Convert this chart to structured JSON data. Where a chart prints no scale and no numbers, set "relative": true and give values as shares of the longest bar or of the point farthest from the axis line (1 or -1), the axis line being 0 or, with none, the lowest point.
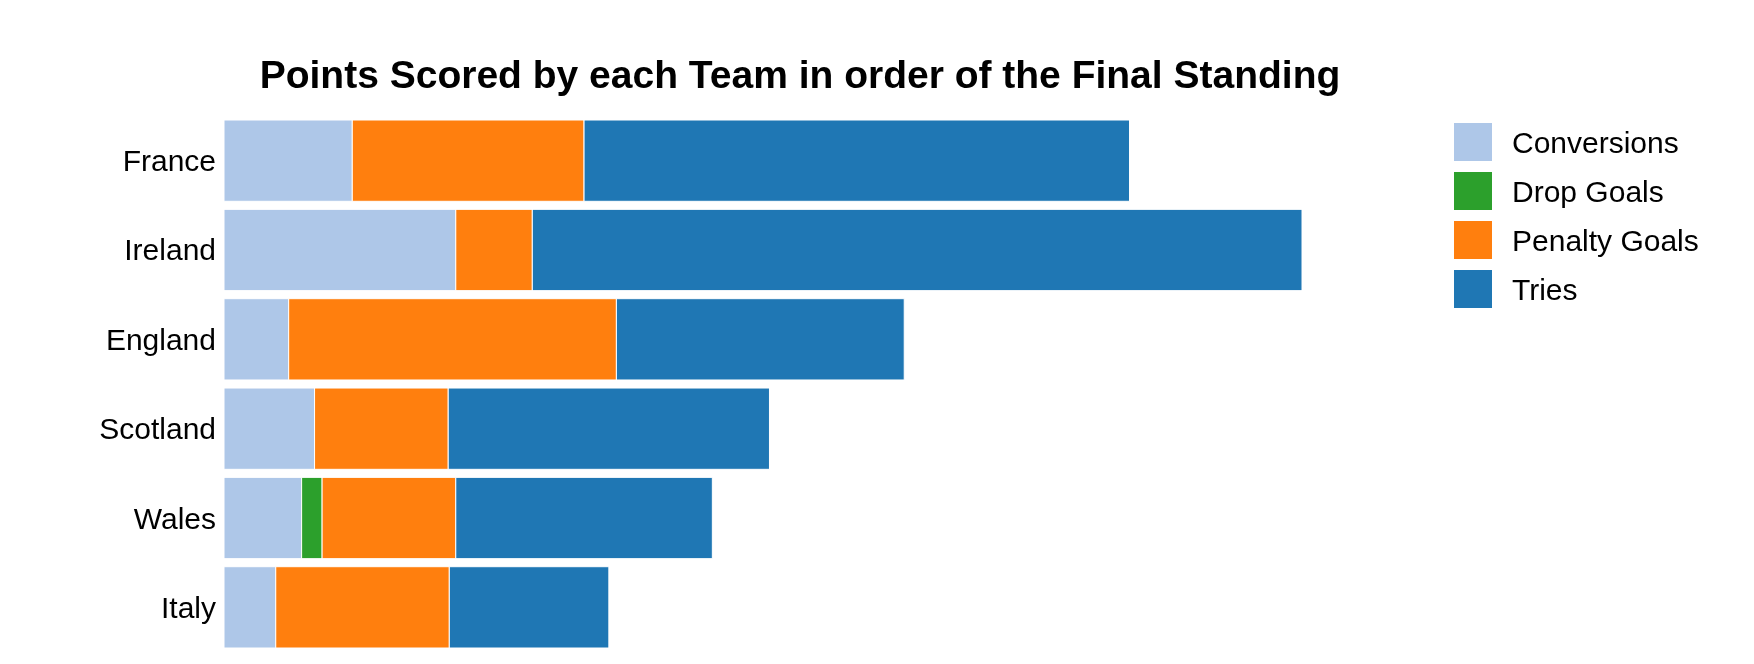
{
  "chart_data": {
    "type": "bar",
    "orientation": "horizontal",
    "stacked": true,
    "relative": true,
    "title": "Points Scored by each Team in order of the Final Standing",
    "categories": [
      "France",
      "Ireland",
      "England",
      "Scotland",
      "Wales",
      "Italy"
    ],
    "legend": "top right",
    "series": [
      {
        "name": "Conversions",
        "color": "#aec7e8",
        "values": [
          0.119,
          0.215,
          0.06,
          0.084,
          0.072,
          0.048
        ]
      },
      {
        "name": "Drop Goals",
        "color": "#2ca02c",
        "values": [
          null,
          null,
          null,
          null,
          0.019,
          null
        ]
      },
      {
        "name": "Penalty Goals",
        "color": "#ff7f0e",
        "values": [
          0.215,
          0.071,
          0.304,
          0.124,
          0.124,
          0.161
        ]
      },
      {
        "name": "Tries",
        "color": "#1f77b4",
        "values": [
          0.506,
          0.714,
          0.267,
          0.298,
          0.238,
          0.148
        ]
      }
    ]
  }
}
